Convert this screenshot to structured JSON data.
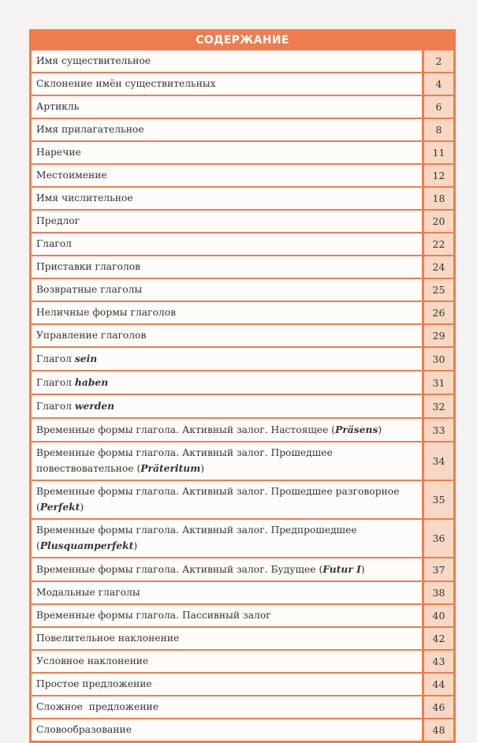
{
  "title": "СОДЕРЖАНИЕ",
  "accent_color": "#ef7d4f",
  "page_cell_color": "#f7d8c4",
  "items": [
    {
      "text": "Имя существительное",
      "page": "2"
    },
    {
      "text": "Склонение имён существительных",
      "page": "4"
    },
    {
      "text": "Артикль",
      "page": "6"
    },
    {
      "text": "Имя прилагательное",
      "page": "8"
    },
    {
      "text": "Наречие",
      "page": "11"
    },
    {
      "text": "Местоимение",
      "page": "12"
    },
    {
      "text": "Имя числительное",
      "page": "18"
    },
    {
      "text": "Предлог",
      "page": "20"
    },
    {
      "text": "Глагол",
      "page": "22"
    },
    {
      "text": "Приставки глаголов",
      "page": "24"
    },
    {
      "text": "Возвратные глаголы",
      "page": "25"
    },
    {
      "text": "Неличные формы глаголов",
      "page": "26"
    },
    {
      "text": "Управление глаголов",
      "page": "29"
    },
    {
      "text": "Глагол ",
      "italic": "sein",
      "page": "30"
    },
    {
      "text": "Глагол ",
      "italic": "haben",
      "page": "31"
    },
    {
      "text": "Глагол ",
      "italic": "werden",
      "page": "32"
    },
    {
      "text": "Временные формы глагола. Активный залог. Настоящее (",
      "italic": "Präsens",
      "suffix": ")",
      "page": "33"
    },
    {
      "text": "Временные формы глагола. Активный залог. Прошедшее повествовательное (",
      "italic": "Präteritum",
      "suffix": ")",
      "page": "34"
    },
    {
      "text": "Временные формы глагола. Активный залог. Прошедшее разговорное (",
      "italic": "Perfekt",
      "suffix": ")",
      "page": "35"
    },
    {
      "text": "Временные формы глагола. Активный залог. Предпрошедшее (",
      "italic": "Plusquamperfekt",
      "suffix": ")",
      "page": "36"
    },
    {
      "text": "Временные формы глагола. Активный залог. Будущее (",
      "italic": "Futur I",
      "suffix": ")",
      "page": "37"
    },
    {
      "text": "Модальные глаголы",
      "page": "38"
    },
    {
      "text": "Временные формы глагола. Пассивный залог",
      "page": "40"
    },
    {
      "text": "Повелительное наклонение",
      "page": "42"
    },
    {
      "text": "Условное наклонение",
      "page": "43"
    },
    {
      "text": "Простое предложение",
      "page": "44"
    },
    {
      "text": "Сложное  предложение",
      "page": "46"
    },
    {
      "text": "Словообразование",
      "page": "48"
    }
  ]
}
